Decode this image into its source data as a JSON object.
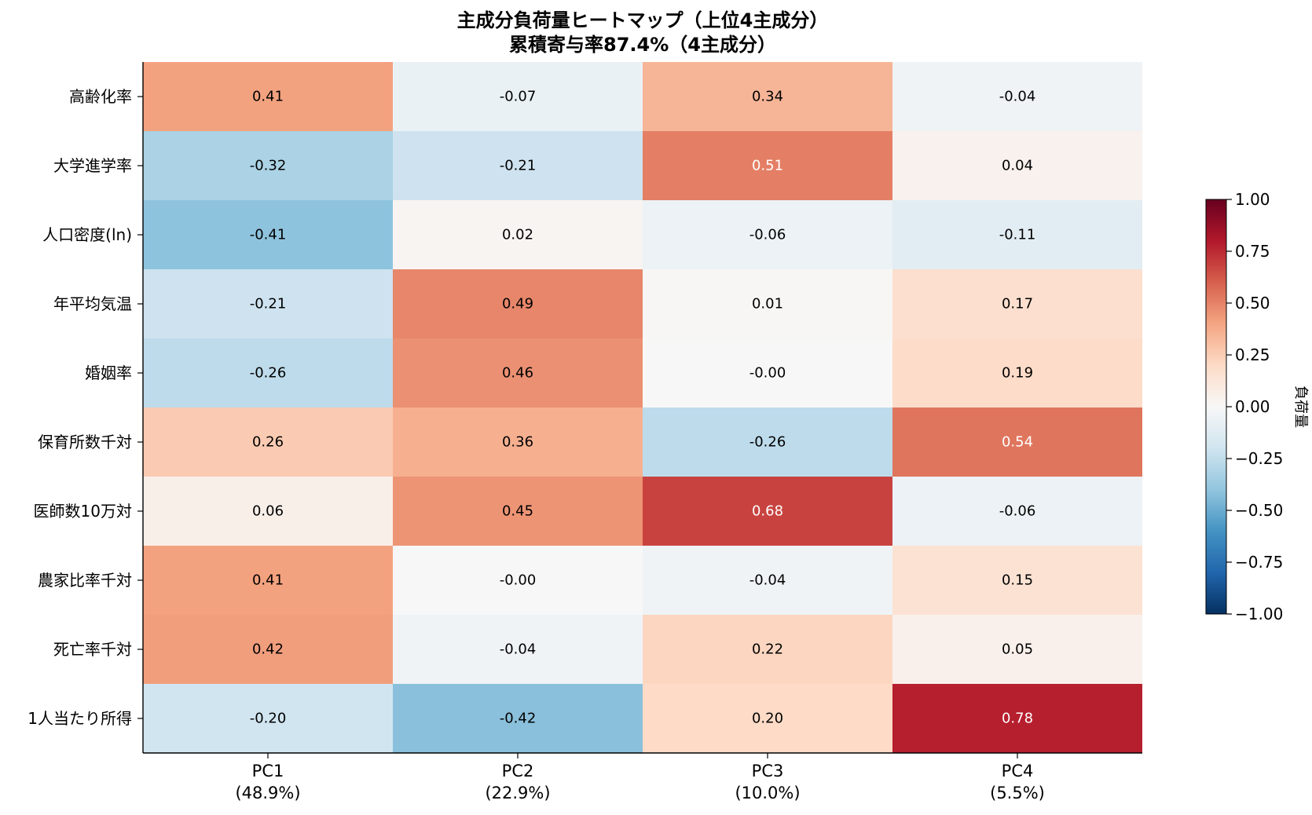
{
  "chart_data": {
    "type": "heatmap",
    "title_lines": [
      "主成分負荷量ヒートマップ（上位4主成分）",
      "累積寄与率87.4%（4主成分）"
    ],
    "rows": [
      "高齢化率",
      "大学進学率",
      "人口密度(ln)",
      "年平均気温",
      "婚姻率",
      "保育所数千対",
      "医師数10万対",
      "農家比率千対",
      "死亡率千対",
      "1人当たり所得"
    ],
    "columns": [
      {
        "name": "PC1",
        "variance": "(48.9%)"
      },
      {
        "name": "PC2",
        "variance": "(22.9%)"
      },
      {
        "name": "PC3",
        "variance": "(10.0%)"
      },
      {
        "name": "PC4",
        "variance": "(5.5%)"
      }
    ],
    "values": [
      [
        0.41,
        -0.07,
        0.34,
        -0.04
      ],
      [
        -0.32,
        -0.21,
        0.51,
        0.04
      ],
      [
        -0.41,
        0.02,
        -0.06,
        -0.11
      ],
      [
        -0.21,
        0.49,
        0.01,
        0.17
      ],
      [
        -0.26,
        0.46,
        -0.0,
        0.19
      ],
      [
        0.26,
        0.36,
        -0.26,
        0.54
      ],
      [
        0.06,
        0.45,
        0.68,
        -0.06
      ],
      [
        0.41,
        -0.0,
        -0.04,
        0.15
      ],
      [
        0.42,
        -0.04,
        0.22,
        0.05
      ],
      [
        -0.2,
        -0.42,
        0.2,
        0.78
      ]
    ],
    "value_labels": [
      [
        "0.41",
        "-0.07",
        "0.34",
        "-0.04"
      ],
      [
        "-0.32",
        "-0.21",
        "0.51",
        "0.04"
      ],
      [
        "-0.41",
        "0.02",
        "-0.06",
        "-0.11"
      ],
      [
        "-0.21",
        "0.49",
        "0.01",
        "0.17"
      ],
      [
        "-0.26",
        "0.46",
        "-0.00",
        "0.19"
      ],
      [
        "0.26",
        "0.36",
        "-0.26",
        "0.54"
      ],
      [
        "0.06",
        "0.45",
        "0.68",
        "-0.06"
      ],
      [
        "0.41",
        "-0.00",
        "-0.04",
        "0.15"
      ],
      [
        "0.42",
        "-0.04",
        "0.22",
        "0.05"
      ],
      [
        "-0.20",
        "-0.42",
        "0.20",
        "0.78"
      ]
    ],
    "colorbar": {
      "label": "負荷量",
      "range": [
        -1.0,
        1.0
      ],
      "ticks": [
        1.0,
        0.75,
        0.5,
        0.25,
        0.0,
        -0.25,
        -0.5,
        -0.75,
        -1.0
      ],
      "tick_labels": [
        "1.00",
        "0.75",
        "0.50",
        "0.25",
        "0.00",
        "−0.25",
        "−0.50",
        "−0.75",
        "−1.00"
      ],
      "colormap": "RdBu_r"
    }
  },
  "colors": {
    "dark_red": "#67001f",
    "red": "#b2182b",
    "light_red": "#d6604d",
    "salmon": "#f4a582",
    "peach": "#fddbc7",
    "white": "#f7f7f7",
    "light_blue": "#d1e5f0",
    "sky": "#92c5de",
    "blue": "#4393c3",
    "mid_blue": "#2166ac",
    "dark_blue": "#053061",
    "light_text": "#ffffff",
    "dark_text": "#000000"
  }
}
